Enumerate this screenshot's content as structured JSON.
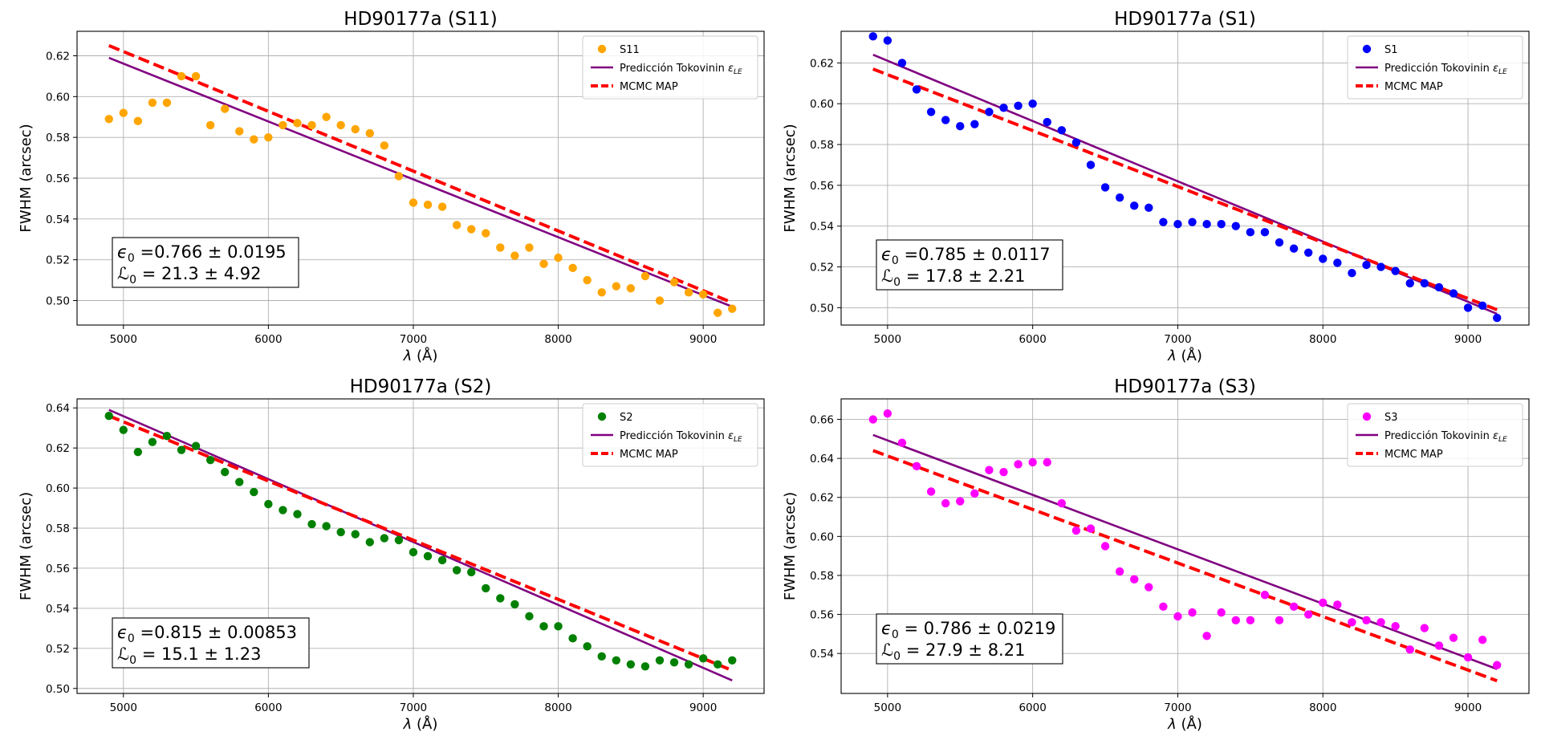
{
  "colors": {
    "model": "#800080",
    "mcmc": "#ff0000",
    "grid": "#b0b0b0"
  },
  "chart_data": [
    {
      "type": "scatter",
      "title": "HD90177a (S11)",
      "xlabel": "λ (Å)",
      "ylabel": "FWHM (arcsec)",
      "xlim": [
        4680,
        9420
      ],
      "ylim": [
        0.488,
        0.632
      ],
      "xticks": [
        5000,
        6000,
        7000,
        8000,
        9000
      ],
      "yticks": [
        0.5,
        0.52,
        0.54,
        0.56,
        0.58,
        0.6,
        0.62
      ],
      "ytick_labels": [
        "0.50",
        "0.52",
        "0.54",
        "0.56",
        "0.58",
        "0.60",
        "0.62"
      ],
      "grid": true,
      "legend_position": "top-right",
      "point_color": "#ffa500",
      "series": [
        {
          "name": "S11",
          "kind": "scatter",
          "x": [
            4900,
            5000,
            5100,
            5200,
            5300,
            5400,
            5500,
            5600,
            5700,
            5800,
            5900,
            6000,
            6100,
            6200,
            6300,
            6400,
            6500,
            6600,
            6700,
            6800,
            6900,
            7000,
            7100,
            7200,
            7300,
            7400,
            7500,
            7600,
            7700,
            7800,
            7900,
            8000,
            8100,
            8200,
            8300,
            8400,
            8500,
            8600,
            8700,
            8800,
            8900,
            9000,
            9100,
            9200
          ],
          "y": [
            0.589,
            0.592,
            0.588,
            0.597,
            0.597,
            0.61,
            0.61,
            0.586,
            0.594,
            0.583,
            0.579,
            0.58,
            0.586,
            0.587,
            0.586,
            0.59,
            0.586,
            0.584,
            0.582,
            0.576,
            0.561,
            0.548,
            0.547,
            0.546,
            0.537,
            0.535,
            0.533,
            0.526,
            0.522,
            0.526,
            0.518,
            0.521,
            0.516,
            0.51,
            0.504,
            0.507,
            0.506,
            0.512,
            0.5,
            0.509,
            0.504,
            0.503,
            0.494,
            0.496
          ]
        },
        {
          "name": "Predicción Tokovinin",
          "name_sub": "ε",
          "name_subscript": "LE",
          "kind": "line",
          "x": [
            4900,
            9200
          ],
          "y_endpoints": [
            0.619,
            0.497
          ]
        },
        {
          "name": "MCMC MAP",
          "kind": "dashed",
          "x": [
            4900,
            9200
          ],
          "y_endpoints": [
            0.625,
            0.499
          ]
        }
      ],
      "annotation": {
        "line1": "=0.766 ± 0.0195",
        "line2": "= 21.3 ± 4.92"
      }
    },
    {
      "type": "scatter",
      "title": "HD90177a (S1)",
      "xlabel": "λ (Å)",
      "ylabel": "FWHM (arcsec)",
      "xlim": [
        4680,
        9420
      ],
      "ylim": [
        0.4915,
        0.6355
      ],
      "xticks": [
        5000,
        6000,
        7000,
        8000,
        9000
      ],
      "yticks": [
        0.5,
        0.52,
        0.54,
        0.56,
        0.58,
        0.6,
        0.62
      ],
      "ytick_labels": [
        "0.50",
        "0.52",
        "0.54",
        "0.56",
        "0.58",
        "0.60",
        "0.62"
      ],
      "grid": true,
      "legend_position": "top-right",
      "point_color": "#0000ff",
      "series": [
        {
          "name": "S1",
          "kind": "scatter",
          "x": [
            4900,
            5000,
            5100,
            5200,
            5300,
            5400,
            5500,
            5600,
            5700,
            5800,
            5900,
            6000,
            6100,
            6200,
            6300,
            6400,
            6500,
            6600,
            6700,
            6800,
            6900,
            7000,
            7100,
            7200,
            7300,
            7400,
            7500,
            7600,
            7700,
            7800,
            7900,
            8000,
            8100,
            8200,
            8300,
            8400,
            8500,
            8600,
            8700,
            8800,
            8900,
            9000,
            9100,
            9200
          ],
          "y": [
            0.633,
            0.631,
            0.62,
            0.607,
            0.596,
            0.592,
            0.589,
            0.59,
            0.596,
            0.598,
            0.599,
            0.6,
            0.591,
            0.587,
            0.581,
            0.57,
            0.559,
            0.554,
            0.55,
            0.549,
            0.542,
            0.541,
            0.542,
            0.541,
            0.541,
            0.54,
            0.537,
            0.537,
            0.532,
            0.529,
            0.527,
            0.524,
            0.522,
            0.517,
            0.521,
            0.52,
            0.518,
            0.512,
            0.512,
            0.51,
            0.507,
            0.5,
            0.501,
            0.495
          ]
        },
        {
          "name": "Predicción Tokovinin",
          "name_sub": "ε",
          "name_subscript": "LE",
          "kind": "line",
          "x": [
            4900,
            9200
          ],
          "y_endpoints": [
            0.624,
            0.497
          ]
        },
        {
          "name": "MCMC MAP",
          "kind": "dashed",
          "x": [
            4900,
            9200
          ],
          "y_endpoints": [
            0.617,
            0.499
          ]
        }
      ],
      "annotation": {
        "line1": "=0.785 ± 0.0117",
        "line2": "= 17.8 ± 2.21"
      }
    },
    {
      "type": "scatter",
      "title": "HD90177a (S2)",
      "xlabel": "λ (Å)",
      "ylabel": "FWHM (arcsec)",
      "xlim": [
        4680,
        9420
      ],
      "ylim": [
        0.4975,
        0.6445
      ],
      "xticks": [
        5000,
        6000,
        7000,
        8000,
        9000
      ],
      "yticks": [
        0.5,
        0.52,
        0.54,
        0.56,
        0.58,
        0.6,
        0.62,
        0.64
      ],
      "ytick_labels": [
        "0.50",
        "0.52",
        "0.54",
        "0.56",
        "0.58",
        "0.60",
        "0.62",
        "0.64"
      ],
      "grid": true,
      "legend_position": "top-right",
      "point_color": "#008000",
      "series": [
        {
          "name": "S2",
          "kind": "scatter",
          "x": [
            4900,
            5000,
            5100,
            5200,
            5300,
            5400,
            5500,
            5600,
            5700,
            5800,
            5900,
            6000,
            6100,
            6200,
            6300,
            6400,
            6500,
            6600,
            6700,
            6800,
            6900,
            7000,
            7100,
            7200,
            7300,
            7400,
            7500,
            7600,
            7700,
            7800,
            7900,
            8000,
            8100,
            8200,
            8300,
            8400,
            8500,
            8600,
            8700,
            8800,
            8900,
            9000,
            9100,
            9200
          ],
          "y": [
            0.636,
            0.629,
            0.618,
            0.623,
            0.626,
            0.619,
            0.621,
            0.614,
            0.608,
            0.603,
            0.598,
            0.592,
            0.589,
            0.587,
            0.582,
            0.581,
            0.578,
            0.577,
            0.573,
            0.575,
            0.574,
            0.568,
            0.566,
            0.564,
            0.559,
            0.558,
            0.55,
            0.545,
            0.542,
            0.536,
            0.531,
            0.531,
            0.525,
            0.521,
            0.516,
            0.514,
            0.512,
            0.511,
            0.514,
            0.513,
            0.512,
            0.515,
            0.512,
            0.514
          ]
        },
        {
          "name": "Predicción Tokovinin",
          "name_sub": "ε",
          "name_subscript": "LE",
          "kind": "line",
          "x": [
            4900,
            9200
          ],
          "y_endpoints": [
            0.639,
            0.504
          ]
        },
        {
          "name": "MCMC MAP",
          "kind": "dashed",
          "x": [
            4900,
            9200
          ],
          "y_endpoints": [
            0.636,
            0.509
          ]
        }
      ],
      "annotation": {
        "line1": "=0.815 ± 0.00853",
        "line2": "= 15.1 ± 1.23"
      }
    },
    {
      "type": "scatter",
      "title": "HD90177a (S3)",
      "xlabel": "λ (Å)",
      "ylabel": "FWHM (arcsec)",
      "xlim": [
        4680,
        9420
      ],
      "ylim": [
        0.5195,
        0.6705
      ],
      "xticks": [
        5000,
        6000,
        7000,
        8000,
        9000
      ],
      "yticks": [
        0.54,
        0.56,
        0.58,
        0.6,
        0.62,
        0.64,
        0.66
      ],
      "ytick_labels": [
        "0.54",
        "0.56",
        "0.58",
        "0.60",
        "0.62",
        "0.64",
        "0.66"
      ],
      "grid": true,
      "legend_position": "top-right",
      "point_color": "#ff00ff",
      "series": [
        {
          "name": "S3",
          "kind": "scatter",
          "x": [
            4900,
            5000,
            5100,
            5200,
            5300,
            5400,
            5500,
            5600,
            5700,
            5800,
            5900,
            6000,
            6100,
            6200,
            6300,
            6400,
            6500,
            6600,
            6700,
            6800,
            6900,
            7000,
            7100,
            7200,
            7300,
            7400,
            7500,
            7600,
            7700,
            7800,
            7900,
            8000,
            8100,
            8200,
            8300,
            8400,
            8500,
            8600,
            8700,
            8800,
            8900,
            9000,
            9100,
            9200
          ],
          "y": [
            0.66,
            0.663,
            0.648,
            0.636,
            0.623,
            0.617,
            0.618,
            0.622,
            0.634,
            0.633,
            0.637,
            0.638,
            0.638,
            0.617,
            0.603,
            0.604,
            0.595,
            0.582,
            0.578,
            0.574,
            0.564,
            0.559,
            0.561,
            0.549,
            0.561,
            0.557,
            0.557,
            0.57,
            0.557,
            0.564,
            0.56,
            0.566,
            0.565,
            0.556,
            0.557,
            0.556,
            0.554,
            0.542,
            0.553,
            0.544,
            0.548,
            0.538,
            0.547,
            0.534
          ]
        },
        {
          "name": "Predicción Tokovinin",
          "name_sub": "ε",
          "name_subscript": "LE",
          "kind": "line",
          "x": [
            4900,
            9200
          ],
          "y_endpoints": [
            0.652,
            0.532
          ]
        },
        {
          "name": "MCMC MAP",
          "kind": "dashed",
          "x": [
            4900,
            9200
          ],
          "y_endpoints": [
            0.644,
            0.526
          ]
        }
      ],
      "annotation": {
        "line1": "= 0.786 ± 0.0219",
        "line2": "= 27.9 ± 8.21"
      }
    }
  ]
}
